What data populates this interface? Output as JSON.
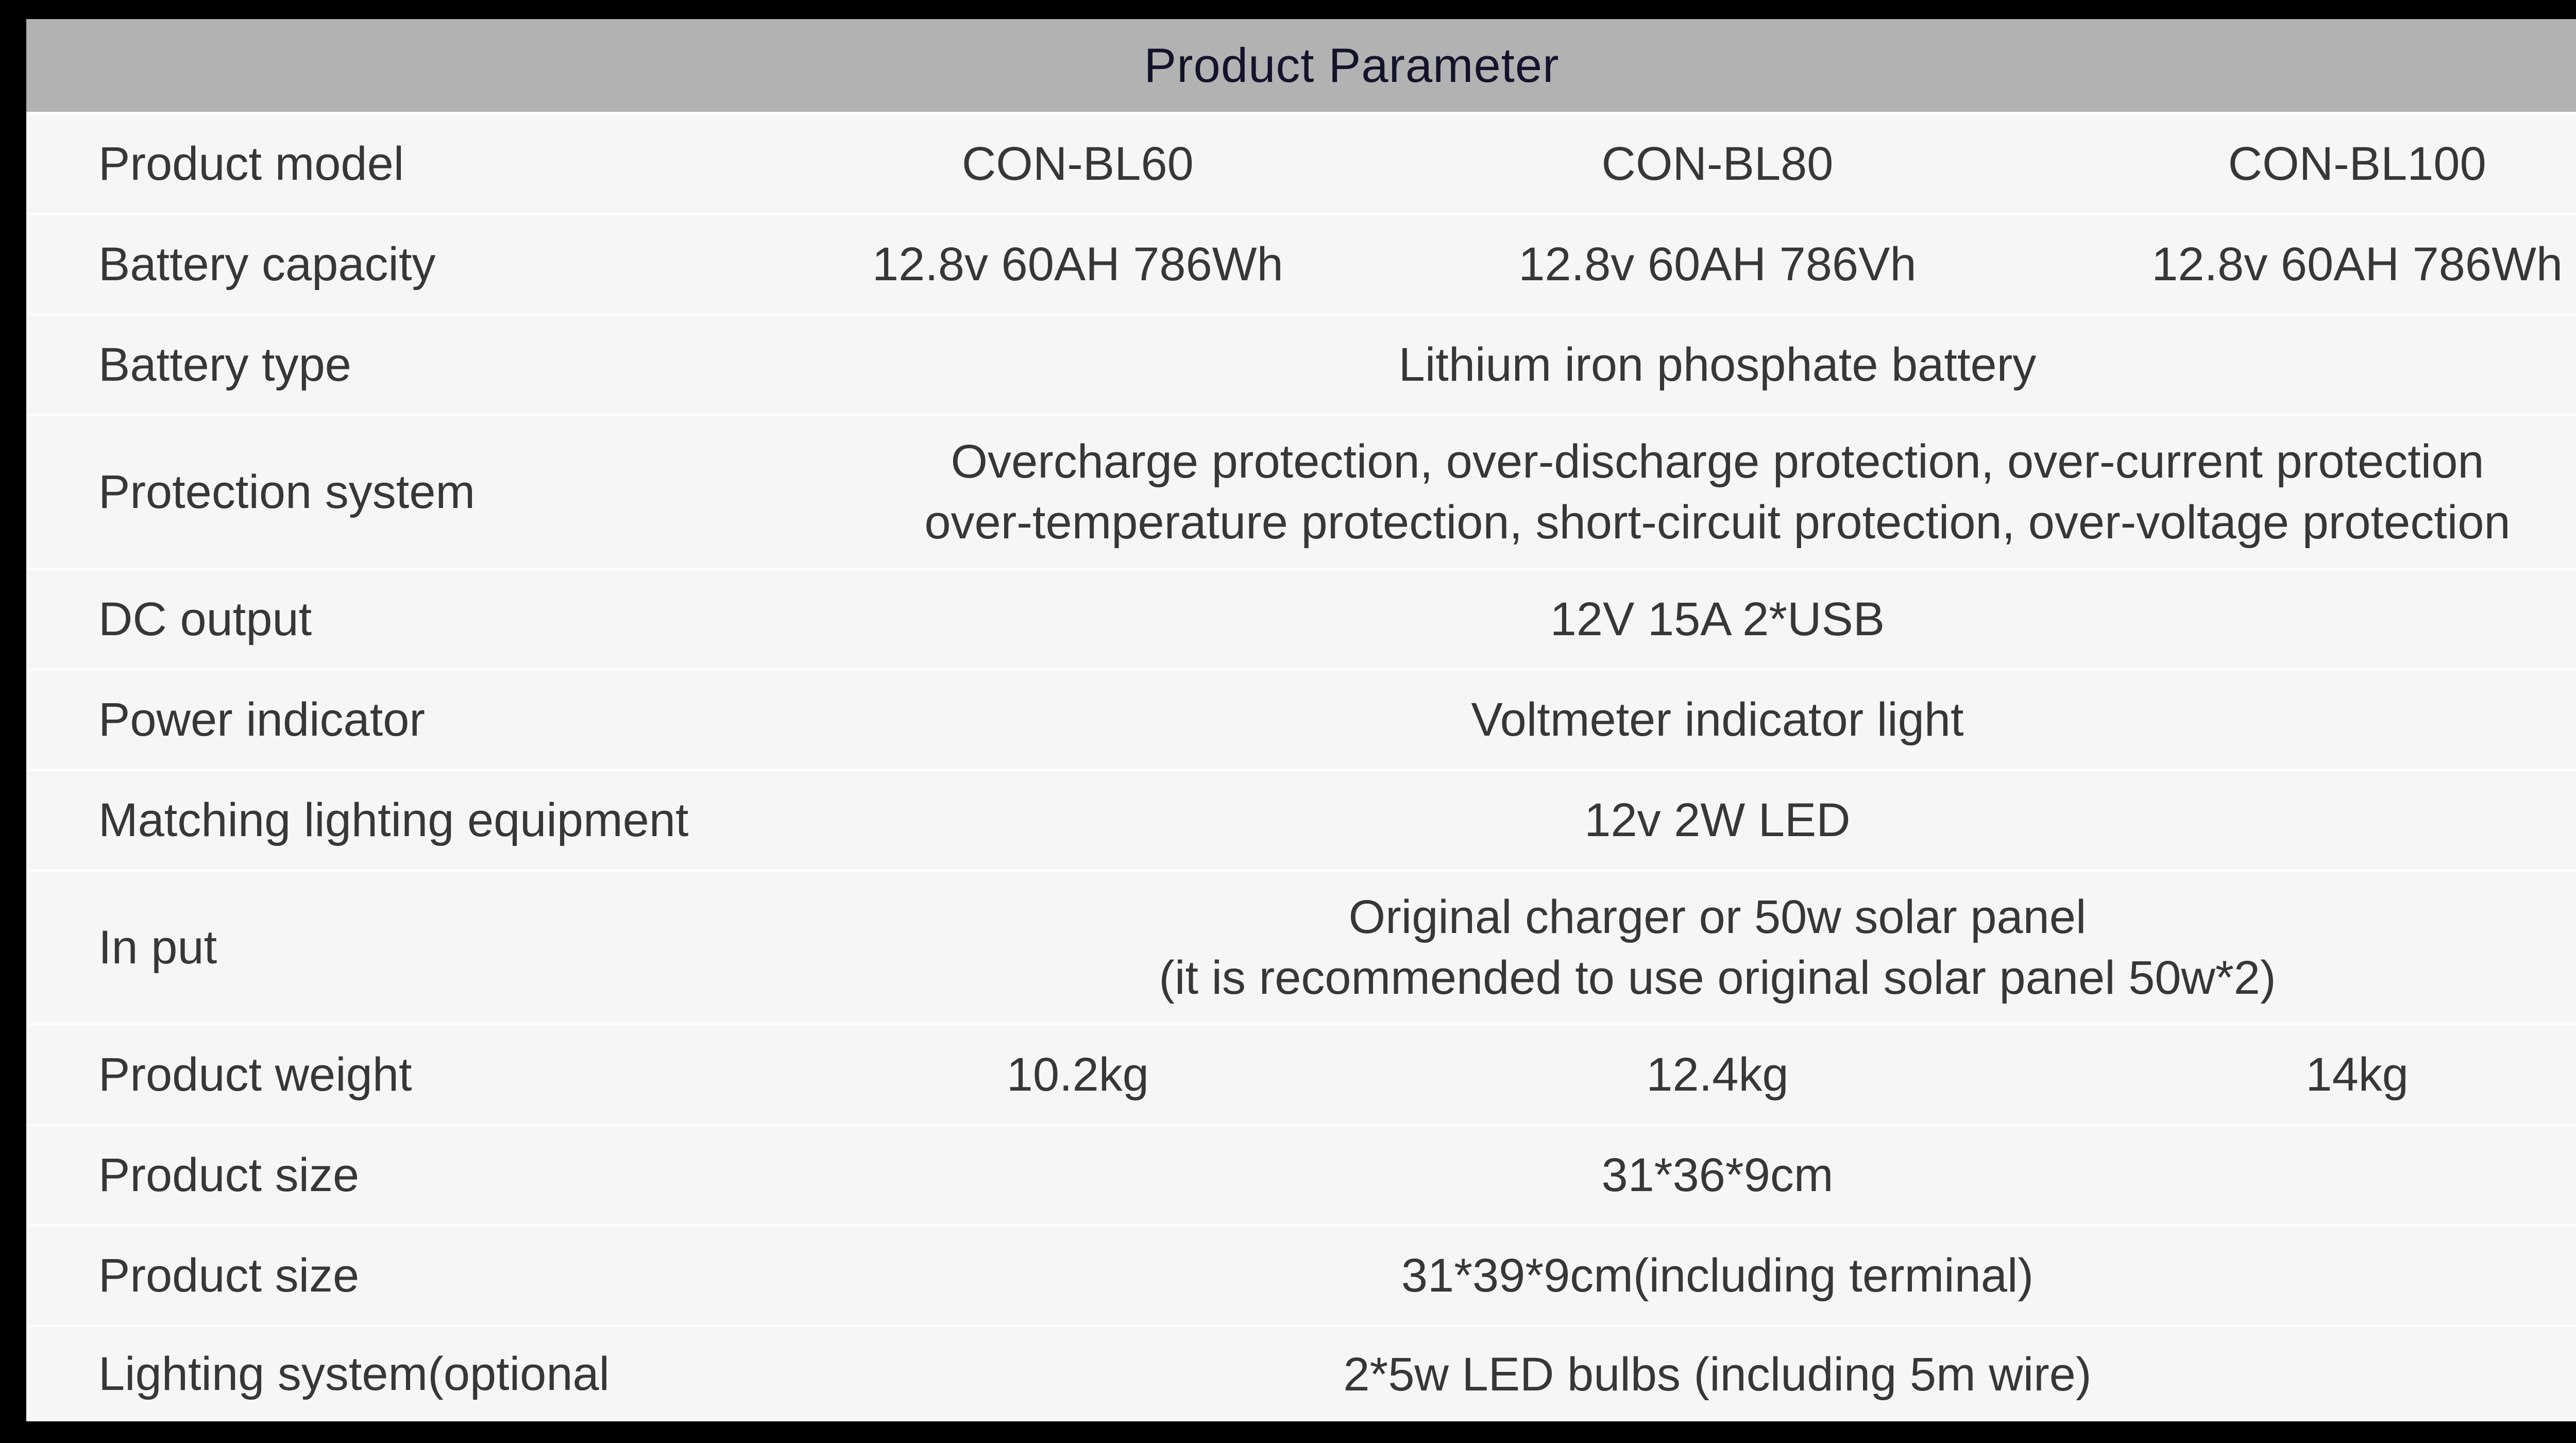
{
  "header": {
    "title": "Product Parameter"
  },
  "colors": {
    "frame": "#000000",
    "header_bg": "#b2b2b2",
    "header_text": "#13132b",
    "row_bg": "#f6f6f6",
    "separator": "#ffffff",
    "body_text": "#373737"
  },
  "rows": [
    {
      "label": "Product model",
      "values": [
        "CON-BL60",
        "CON-BL80",
        "CON-BL100"
      ]
    },
    {
      "label": "Battery capacity",
      "values": [
        "12.8v 60AH 786Wh",
        "12.8v 60AH 786Vh",
        "12.8v 60AH 786Wh"
      ]
    },
    {
      "label": "Battery type",
      "lines": [
        "Lithium iron phosphate battery"
      ]
    },
    {
      "label": "Protection system",
      "lines": [
        "Overcharge protection, over-discharge protection, over-current protection",
        "over-temperature protection, short-circuit protection, over-voltage protection"
      ]
    },
    {
      "label": "DC output",
      "lines": [
        "12V 15A 2*USB"
      ]
    },
    {
      "label": "Power indicator",
      "lines": [
        "Voltmeter indicator light"
      ]
    },
    {
      "label": "Matching lighting equipment",
      "lines": [
        "12v 2W LED"
      ]
    },
    {
      "label": "In put",
      "lines": [
        "Original charger or 50w solar panel",
        "(it is recommended to use original solar panel 50w*2)"
      ]
    },
    {
      "label": "Product weight",
      "values": [
        "10.2kg",
        "12.4kg",
        "14kg"
      ]
    },
    {
      "label": "Product size",
      "lines": [
        "31*36*9cm"
      ]
    },
    {
      "label": "Product size",
      "lines": [
        "31*39*9cm(including terminal)"
      ]
    },
    {
      "label": "Lighting system(optional",
      "lines": [
        "2*5w LED bulbs (including 5m wire)"
      ]
    }
  ]
}
